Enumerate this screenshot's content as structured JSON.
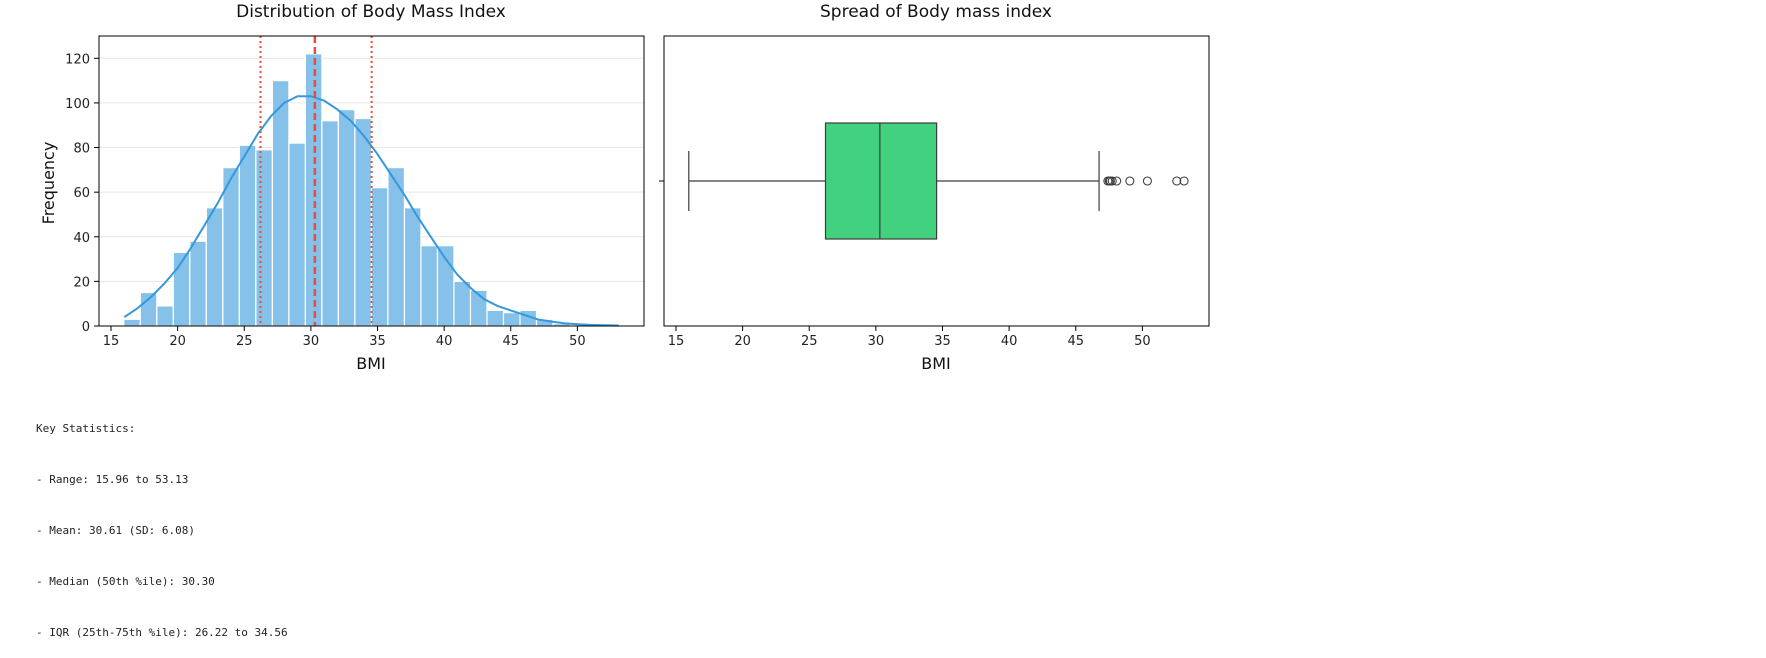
{
  "chart_data": [
    {
      "type": "bar",
      "title": "Distribution of Body Mass Index",
      "xlabel": "BMI",
      "ylabel": "Frequency",
      "xlim": [
        14.1,
        55.0
      ],
      "ylim": [
        0,
        130
      ],
      "xticks": [
        15,
        20,
        25,
        30,
        35,
        40,
        45,
        50
      ],
      "yticks": [
        0,
        20,
        40,
        60,
        80,
        100,
        120
      ],
      "grid": "horizontal",
      "bins": {
        "start": 15.96,
        "width": 1.239,
        "counts": [
          3,
          15,
          9,
          33,
          38,
          53,
          71,
          81,
          79,
          110,
          82,
          122,
          92,
          97,
          93,
          62,
          71,
          53,
          36,
          36,
          20,
          16,
          7,
          6,
          7,
          3,
          1,
          0,
          0,
          1
        ]
      },
      "kde": {
        "x": [
          16.0,
          17.0,
          18.0,
          19.0,
          20.0,
          21.0,
          22.0,
          23.0,
          24.0,
          25.0,
          26.0,
          27.0,
          28.0,
          29.0,
          30.0,
          31.0,
          32.0,
          33.0,
          34.0,
          35.0,
          36.0,
          37.0,
          38.0,
          39.0,
          40.0,
          41.0,
          42.0,
          43.0,
          44.0,
          45.0,
          46.0,
          47.0,
          48.0,
          49.0,
          50.0,
          51.0,
          52.0,
          53.1
        ],
        "y": [
          4,
          8,
          13,
          19,
          26,
          35,
          45,
          55,
          66,
          76,
          86,
          94,
          100,
          103,
          103,
          101,
          97,
          92,
          85,
          77,
          68,
          59,
          49,
          40,
          31,
          23,
          17,
          12,
          9,
          7,
          5,
          3,
          2,
          1.2,
          0.8,
          0.5,
          0.3,
          0.2
        ]
      },
      "lines": [
        {
          "name": "25th percentile",
          "value": 26.22,
          "style": "dotted",
          "color": "#e74c3c"
        },
        {
          "name": "Median",
          "value": 30.3,
          "style": "dashed",
          "color": "#e74c3c"
        },
        {
          "name": "75th percentile",
          "value": 34.56,
          "style": "dotted",
          "color": "#e74c3c"
        }
      ],
      "colors": {
        "bars": "#85c1e9",
        "kde": "#3498db",
        "grid": "#e6e6e6"
      }
    },
    {
      "type": "box",
      "title": "Spread of Body mass index",
      "xlabel": "BMI",
      "xlim": [
        14.1,
        55.0
      ],
      "xticks": [
        15,
        20,
        25,
        30,
        35,
        40,
        45,
        50
      ],
      "whisker_low": 15.96,
      "q1": 26.22,
      "median": 30.3,
      "q3": 34.56,
      "whisker_high": 46.75,
      "outliers": [
        47.41,
        47.52,
        47.6,
        47.74,
        48.07,
        49.06,
        50.38,
        52.58,
        53.13
      ],
      "colors": {
        "box": "#2ecc71",
        "line": "#3d3d3d"
      }
    }
  ],
  "stats": {
    "lines": [
      "Key Statistics:",
      "- Range: 15.96 to 53.13",
      "- Mean: 30.61 (SD: 6.08)",
      "- Median (50th %ile): 30.30",
      "- IQR (25th-75th %ile): 26.22 to 34.56"
    ]
  }
}
